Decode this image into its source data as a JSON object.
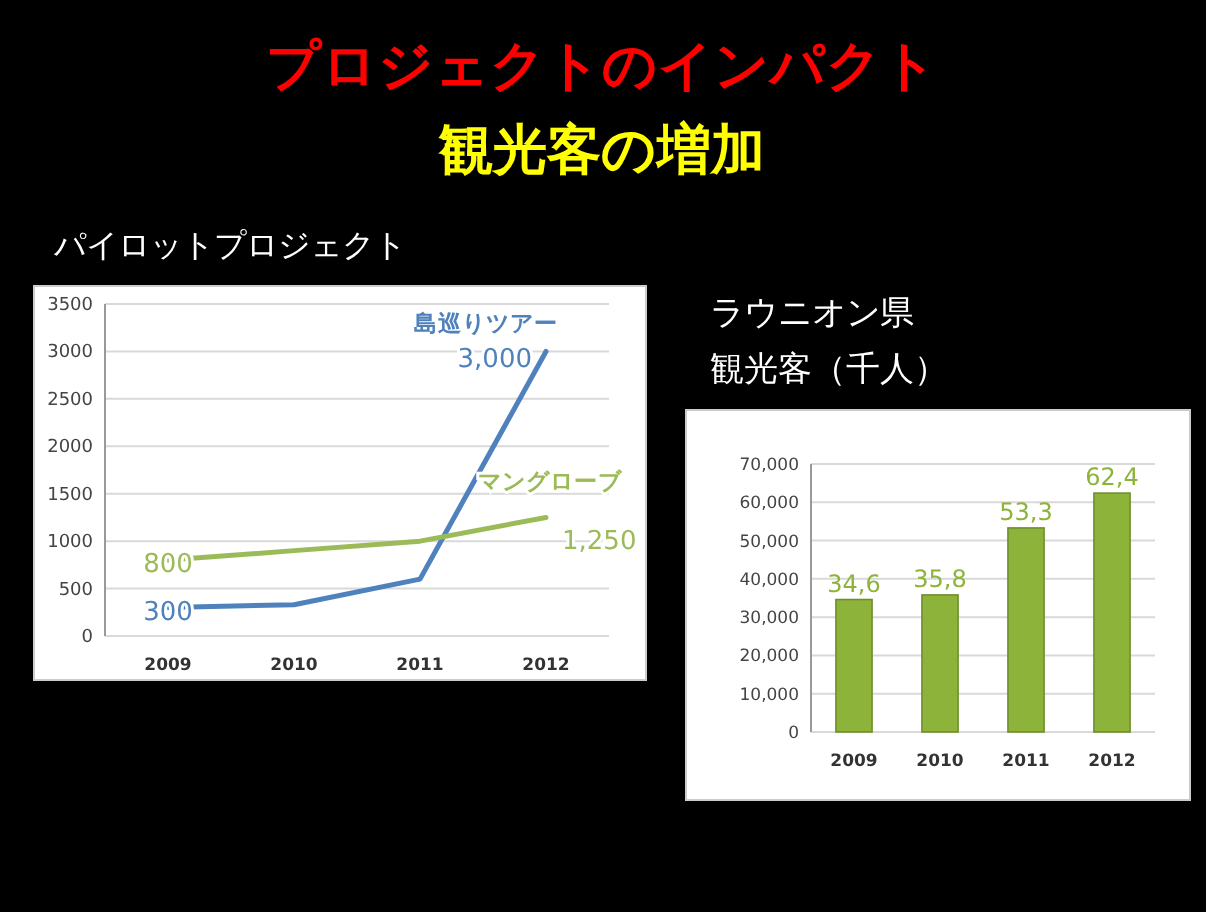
{
  "chart_data": [
    {
      "type": "line",
      "title": "プロジェクトのインパクト",
      "subtitle": "観光客の増加",
      "annotations": [
        "パイロットプロジェクト"
      ],
      "categories": [
        "2009",
        "2010",
        "2011",
        "2012"
      ],
      "ylim": [
        0,
        3500
      ],
      "yticks": [
        0,
        500,
        1000,
        1500,
        2000,
        2500,
        3000,
        3500
      ],
      "grid": "y",
      "series": [
        {
          "name": "島巡りツアー",
          "color": "#4f81bd",
          "values": [
            300,
            330,
            600,
            3000
          ],
          "value_labels": [
            "300",
            null,
            null,
            "3,000"
          ]
        },
        {
          "name": "マングローブ",
          "color": "#9bbb59",
          "values": [
            800,
            900,
            1000,
            1250
          ],
          "value_labels": [
            "800",
            null,
            null,
            "1,250"
          ]
        }
      ]
    },
    {
      "type": "bar",
      "title": "ラウニオン県",
      "subtitle": "観光客（千人）",
      "categories": [
        "2009",
        "2010",
        "2011",
        "2012"
      ],
      "values": [
        34600,
        35800,
        53300,
        62400
      ],
      "annotations": [
        {
          "text": "34,6",
          "x": "2009",
          "y": 34600
        },
        {
          "text": "35,8",
          "x": "2010",
          "y": 35800
        },
        {
          "text": "53,3",
          "x": "2011",
          "y": 53300
        },
        {
          "text": "62,4",
          "x": "2012",
          "y": 62400
        }
      ],
      "color": "#8db33a",
      "ylim": [
        0,
        70000
      ],
      "yticks": [
        0,
        {
          "value": 10000,
          "label": "10,000"
        },
        {
          "value": 20000,
          "label": "20,000"
        },
        {
          "value": 30000,
          "label": "30,000"
        },
        {
          "value": 40000,
          "label": "40,000"
        },
        {
          "value": 50000,
          "label": "50,000"
        },
        {
          "value": 60000,
          "label": "60,000"
        },
        {
          "value": 70000,
          "label": "70,000"
        }
      ],
      "grid": "y"
    }
  ]
}
